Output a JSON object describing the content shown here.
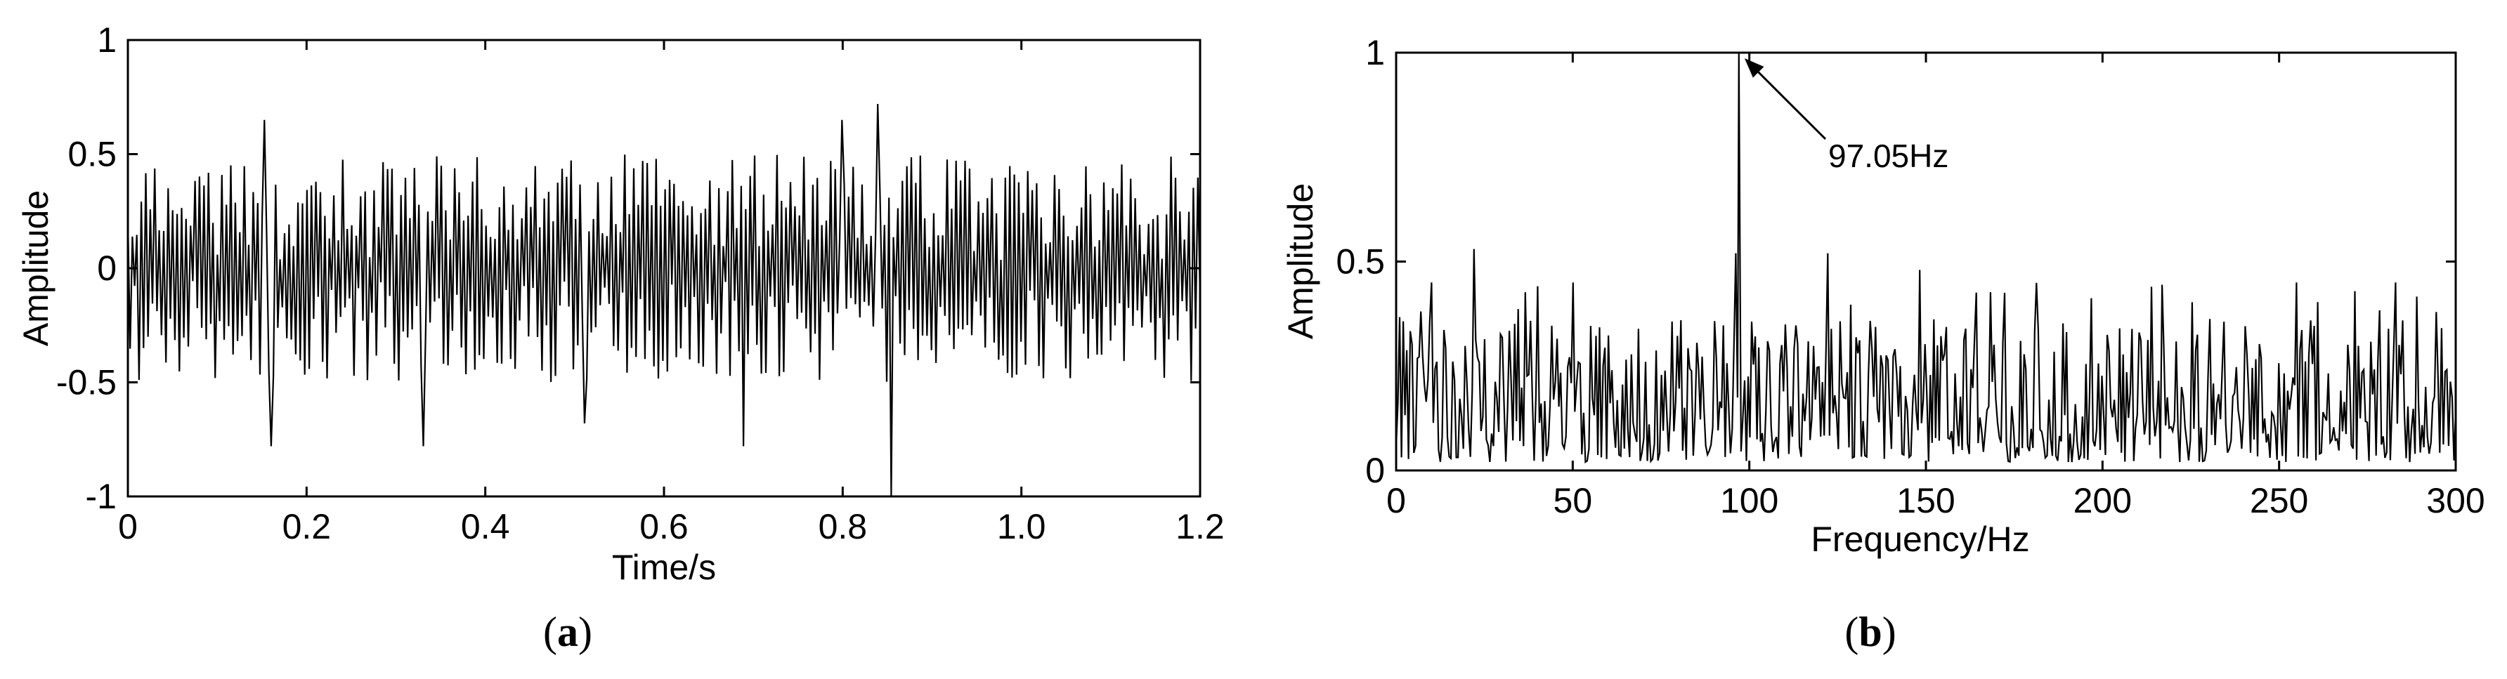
{
  "chart_data": [
    {
      "type": "line",
      "caption_open": "(",
      "caption_letter": "a",
      "caption_close": ")",
      "xlabel": "Time/s",
      "ylabel": "Amplitude",
      "xlim": [
        0,
        1.2
      ],
      "ylim": [
        -1,
        1
      ],
      "x_ticks": [
        0,
        0.2,
        0.4,
        0.6,
        0.8,
        1.0,
        1.2
      ],
      "x_tick_labels": [
        "0",
        "0.2",
        "0.4",
        "0.6",
        "0.8",
        "1.0",
        "1.2"
      ],
      "y_ticks": [
        -1,
        -0.5,
        0,
        0.5,
        1
      ],
      "y_tick_labels": [
        "-1",
        "-0.5",
        "0",
        "0.5",
        "1"
      ],
      "grid": false,
      "series": [
        {
          "sample_count": 480,
          "x_start": 0,
          "x_end": 1.2,
          "envelope_max": 0.5,
          "envelope_min": -0.5,
          "spikes": [
            {
              "x": 0.855,
              "y": -1.0
            },
            {
              "x": 0.152,
              "y": 0.65
            },
            {
              "x": 0.16,
              "y": -0.78
            },
            {
              "x": 0.33,
              "y": -0.78
            },
            {
              "x": 0.84,
              "y": 0.72
            },
            {
              "x": 0.69,
              "y": -0.78
            },
            {
              "x": 0.512,
              "y": -0.68
            },
            {
              "x": 0.8,
              "y": 0.65
            }
          ]
        }
      ]
    },
    {
      "type": "line",
      "caption_open": "(",
      "caption_letter": "b",
      "caption_close": ")",
      "xlabel": "Frequency/Hz",
      "ylabel": "Amplitude",
      "xlim": [
        0,
        300
      ],
      "ylim": [
        0,
        1
      ],
      "x_ticks": [
        0,
        50,
        100,
        150,
        200,
        250,
        300
      ],
      "x_tick_labels": [
        "0",
        "50",
        "100",
        "150",
        "200",
        "250",
        "300"
      ],
      "y_ticks": [
        0,
        0.5,
        1
      ],
      "y_tick_labels": [
        "0",
        "0.5",
        "1"
      ],
      "grid": false,
      "annotations": [
        {
          "text": "97.05Hz",
          "x": 97.05,
          "y": 1.0
        }
      ],
      "series": [
        {
          "sample_count": 600,
          "x_start": 0,
          "x_end": 300,
          "peak": {
            "x": 97.05,
            "y": 1.0
          },
          "noise_max": 0.53,
          "noise_min": 0.02,
          "notable_peaks": [
            {
              "x": 22,
              "y": 0.53
            },
            {
              "x": 96,
              "y": 0.52
            },
            {
              "x": 122,
              "y": 0.52
            },
            {
              "x": 148,
              "y": 0.48
            },
            {
              "x": 50,
              "y": 0.45
            },
            {
              "x": 283,
              "y": 0.45
            },
            {
              "x": 10,
              "y": 0.45
            },
            {
              "x": 255,
              "y": 0.45
            }
          ]
        }
      ]
    }
  ]
}
